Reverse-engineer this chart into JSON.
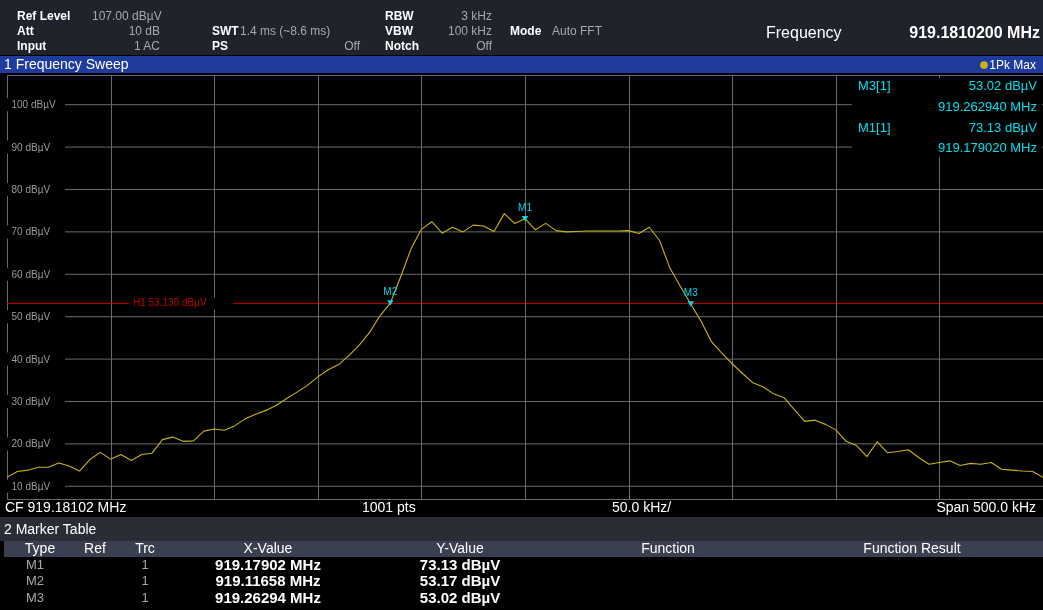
{
  "chart_data": {
    "type": "line",
    "title": "1 Frequency Sweep",
    "legend": "top right",
    "grid": true,
    "tick_labels": "y",
    "categories": [
      null,
      null,
      null,
      null,
      null,
      null,
      null,
      null,
      null,
      null,
      null,
      null,
      null,
      null,
      null,
      null,
      null,
      null,
      null,
      null,
      null,
      null,
      null,
      null,
      null,
      null,
      null,
      null,
      null,
      null,
      null,
      null,
      null,
      null,
      null,
      null,
      null,
      null,
      null,
      null,
      null,
      null,
      null,
      null,
      null,
      null,
      null,
      null,
      null,
      null,
      null,
      null,
      null,
      null,
      null,
      null,
      null,
      null,
      null,
      null,
      null,
      null,
      null,
      null,
      null,
      null,
      null,
      null,
      null,
      null,
      null,
      null,
      null,
      null,
      null,
      null,
      null,
      null,
      null,
      null,
      null,
      null,
      null,
      null,
      null,
      null,
      null,
      null,
      null,
      null,
      null,
      null,
      null,
      null,
      null,
      null,
      null,
      null,
      null,
      null,
      null
    ],
    "ylim": [
      7,
      107
    ],
    "yticks": [
      {
        "value": 10,
        "label": "10 dBµV"
      },
      {
        "value": 20,
        "label": "20 dBµV"
      },
      {
        "value": 30,
        "label": "30 dBµV"
      },
      {
        "value": 40,
        "label": "40 dBµV"
      },
      {
        "value": 50,
        "label": "50 dBµV"
      },
      {
        "value": 60,
        "label": "60 dBµV"
      },
      {
        "value": 70,
        "label": "70 dBµV"
      },
      {
        "value": 80,
        "label": "80 dBµV"
      },
      {
        "value": 90,
        "label": "90 dBµV"
      },
      {
        "value": 100,
        "label": "100 dBµV"
      }
    ],
    "series": [
      {
        "name": "1Pk Max",
        "color": "#c8b414",
        "values": [
          12.1,
          13.5,
          13.8,
          14.5,
          14.5,
          15.5,
          14.8,
          13.6,
          16.3,
          18.0,
          16.4,
          17.5,
          16.1,
          17.5,
          17.8,
          21.0,
          21.6,
          20.6,
          20.7,
          23.0,
          23.5,
          23.2,
          24.3,
          25.9,
          27.0,
          27.9,
          29.1,
          30.7,
          32.2,
          33.8,
          35.8,
          37.5,
          38.7,
          40.8,
          43.3,
          46.3,
          50.2,
          53.2,
          59.4,
          66.0,
          70.6,
          72.4,
          69.7,
          71.1,
          70.0,
          71.6,
          71.4,
          70.1,
          74.3,
          72.0,
          73.1,
          70.5,
          72.0,
          70.3,
          70.0,
          70.1,
          70.2,
          70.2,
          70.2,
          70.2,
          70.3,
          69.6,
          71.1,
          67.9,
          61.4,
          57.1,
          53.0,
          48.9,
          44.1,
          41.4,
          38.9,
          36.6,
          34.4,
          33.4,
          31.8,
          30.9,
          28.1,
          25.3,
          25.6,
          24.6,
          23.3,
          20.6,
          19.6,
          17.0,
          20.5,
          17.9,
          18.2,
          18.6,
          16.8,
          15.2,
          15.6,
          16.0,
          14.9,
          15.4,
          15.2,
          15.6,
          14.0,
          13.8,
          13.6,
          13.5,
          12.1
        ],
        "value_labels": [
          null,
          null,
          null,
          null,
          null,
          null,
          null,
          null,
          null,
          null,
          null,
          null,
          null,
          null,
          null,
          null,
          null,
          null,
          null,
          null,
          null,
          null,
          null,
          null,
          null,
          null,
          null,
          null,
          null,
          null,
          null,
          null,
          null,
          null,
          null,
          null,
          null,
          "M2",
          null,
          null,
          null,
          null,
          null,
          null,
          null,
          null,
          null,
          null,
          null,
          null,
          "M1",
          null,
          null,
          null,
          null,
          null,
          null,
          null,
          null,
          null,
          null,
          null,
          null,
          null,
          null,
          null,
          "M3",
          null,
          null,
          null,
          null,
          null,
          null,
          null,
          null,
          null,
          null,
          null,
          null,
          null,
          null,
          null,
          null,
          null,
          null,
          null,
          null,
          null,
          null,
          null,
          null,
          null,
          null,
          null,
          null,
          null,
          null,
          null,
          null,
          null,
          null
        ]
      }
    ],
    "ref_lines": [
      {
        "axis": "y",
        "value": 53.13,
        "label": "H1 53.130 dBµV",
        "color": "#c00000"
      }
    ],
    "annotations": [
      "Ref Level",
      "107.00 dBµV",
      "Att",
      "10 dB",
      "Input",
      "1 AC",
      "SWT",
      "1.4 ms (~8.6 ms)",
      "PS",
      "Off",
      "RBW",
      "3 kHz",
      "VBW",
      "100 kHz",
      "Notch",
      "Off",
      "Mode",
      "Auto FFT",
      "Frequency",
      "919.1810200 MHz",
      "M3[1]",
      "53.02 dBµV",
      "919.262940 MHz",
      "M1[1]",
      "73.13 dBµV",
      "919.179020 MHz",
      "CF 919.18102 MHz",
      "1001 pts",
      "50.0 kHz/",
      "Span 500.0 kHz",
      "2 Marker Table",
      "Type",
      "Ref",
      "Trc",
      "X-Value",
      "Y-Value",
      "Function",
      "Function Result",
      "M1",
      "1",
      "919.17902 MHz",
      "73.13 dBµV",
      "M2",
      "1",
      "919.11658 MHz",
      "53.17 dBµV",
      "M3",
      "1",
      "919.26294 MHz",
      "53.02 dBµV"
    ]
  }
}
